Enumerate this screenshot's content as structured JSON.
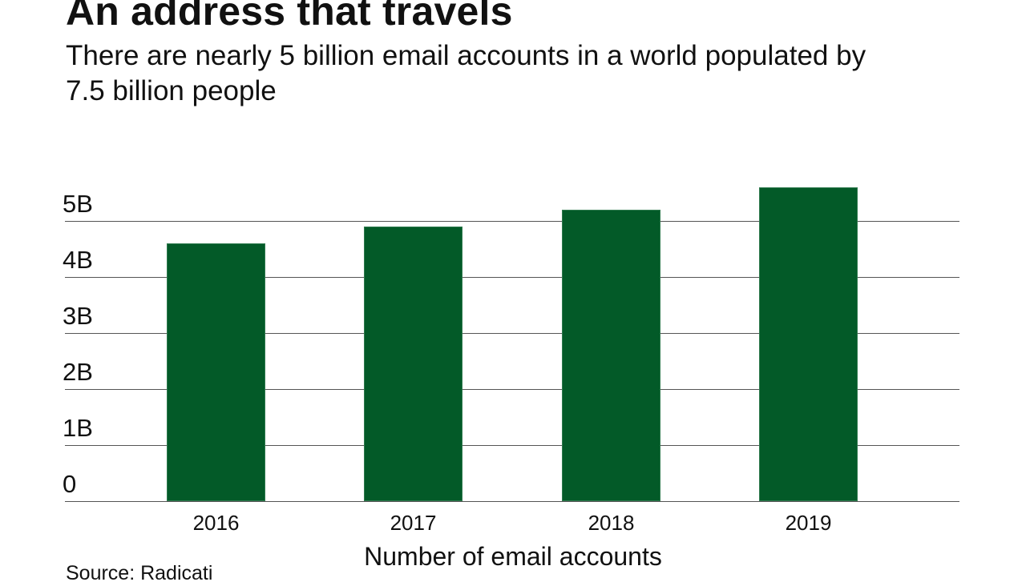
{
  "header": {
    "title": "An address that travels",
    "subtitle": "There are nearly 5 billion email accounts in a world populated by 7.5 billion people"
  },
  "footer": {
    "source": "Source: Radicati"
  },
  "colors": {
    "bar": "#035a28",
    "gridline": "#555555",
    "text": "#111111",
    "background": "#ffffff"
  },
  "chart_data": {
    "type": "bar",
    "title": "An address that travels",
    "subtitle": "There are nearly 5 billion email accounts in a world populated by 7.5 billion people",
    "categories": [
      "2016",
      "2017",
      "2018",
      "2019"
    ],
    "values": [
      4.6,
      4.9,
      5.2,
      5.6
    ],
    "units": "billion",
    "series": [
      {
        "name": "Number of email accounts",
        "values": [
          4.6,
          4.9,
          5.2,
          5.6
        ]
      }
    ],
    "xlabel": "Number of email accounts",
    "ylabel": "",
    "ylim": [
      0,
      5.6
    ],
    "yticks": [
      {
        "value": 0,
        "label": "0"
      },
      {
        "value": 1,
        "label": "1B"
      },
      {
        "value": 2,
        "label": "2B"
      },
      {
        "value": 3,
        "label": "3B"
      },
      {
        "value": 4,
        "label": "4B"
      },
      {
        "value": 5,
        "label": "5B"
      }
    ],
    "grid": true,
    "legend": "none",
    "source": "Source: Radicati"
  }
}
